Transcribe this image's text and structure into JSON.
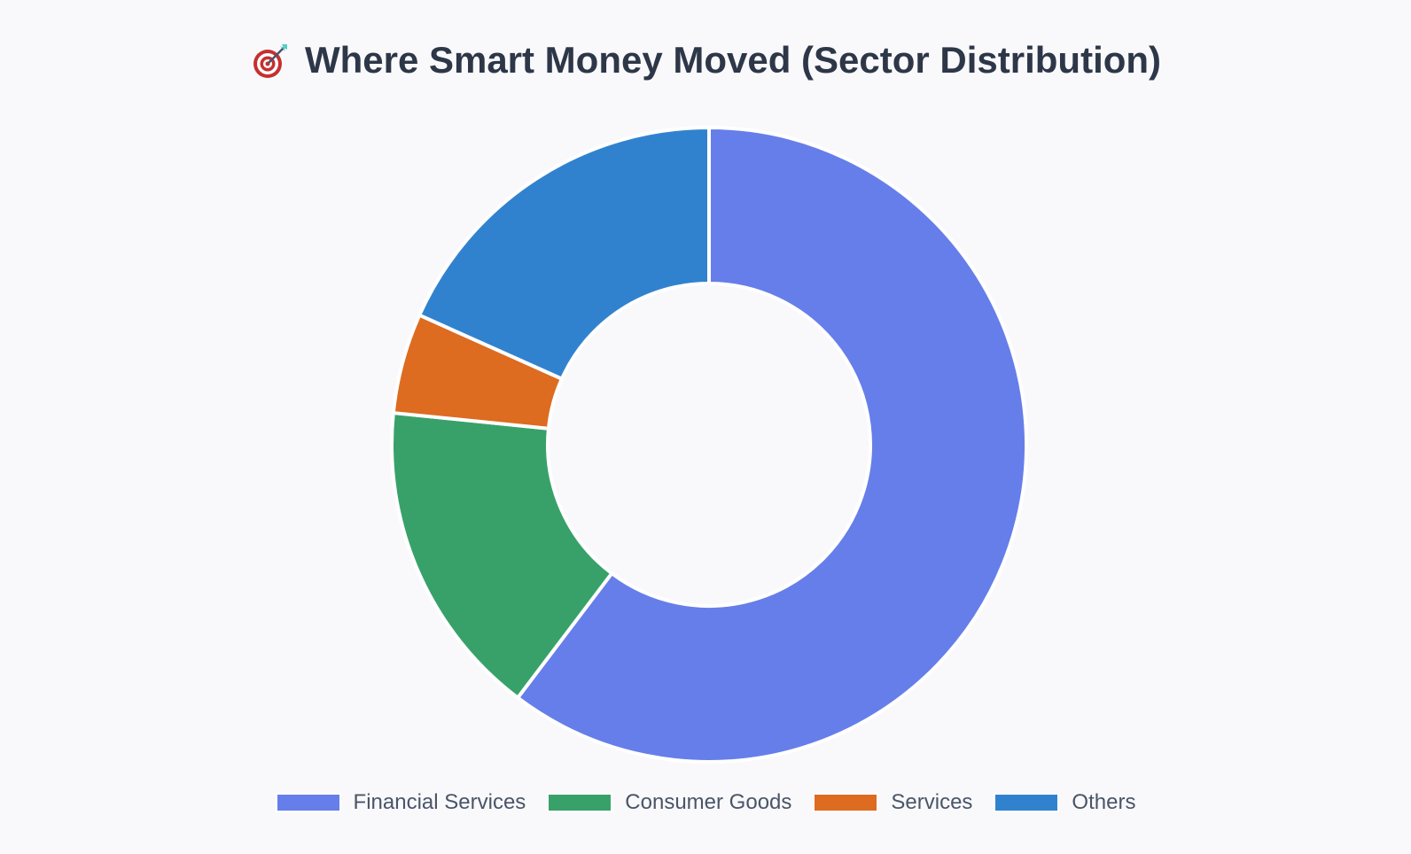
{
  "title": {
    "icon": "dart-target-icon",
    "text": "Where Smart Money Moved (Sector Distribution)"
  },
  "chart_data": {
    "type": "pie",
    "variant": "doughnut",
    "title": "Where Smart Money Moved (Sector Distribution)",
    "categories": [
      "Financial Services",
      "Consumer Goods",
      "Services",
      "Others"
    ],
    "values": [
      60.3,
      16.3,
      5.1,
      18.3
    ],
    "value_unit": "percent",
    "colors": [
      "#667eea",
      "#38a169",
      "#dd6b20",
      "#3182ce"
    ],
    "legend_position": "bottom",
    "start": "top",
    "direction": "clockwise",
    "slice_border_color": "#ffffff"
  }
}
